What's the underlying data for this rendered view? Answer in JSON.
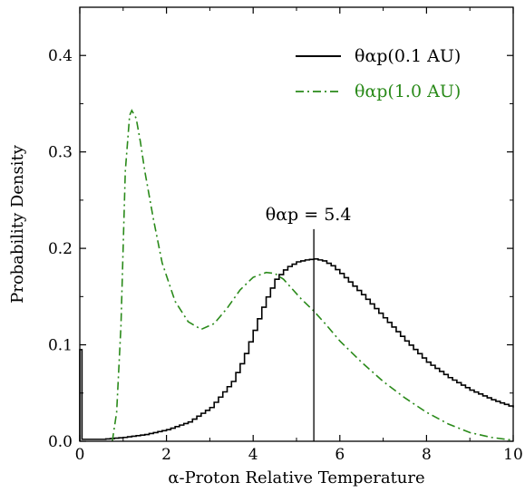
{
  "chart_data": {
    "type": "line",
    "xlabel": "α-Proton Relative Temperature",
    "ylabel": "Probability Density",
    "xlim": [
      0,
      10
    ],
    "ylim": [
      0,
      0.45
    ],
    "x_ticks": [
      0,
      2,
      4,
      6,
      8,
      10
    ],
    "x_tick_labels": [
      "0",
      "2",
      "4",
      "6",
      "8",
      "10"
    ],
    "y_ticks": [
      0.0,
      0.1,
      0.2,
      0.3,
      0.4
    ],
    "y_tick_labels": [
      "0.0",
      "0.1",
      "0.2",
      "0.3",
      "0.4"
    ],
    "grid": false,
    "legend_position": "top-right",
    "series": [
      {
        "name": "θαp(0.1 AU)",
        "color": "#000000",
        "style": "steps-solid",
        "x": [
          0.0,
          0.05,
          0.1,
          0.15,
          0.2,
          0.5,
          1.0,
          1.5,
          2.0,
          2.5,
          3.0,
          3.5,
          3.75,
          4.0,
          4.25,
          4.5,
          4.75,
          5.0,
          5.2,
          5.4,
          5.6,
          5.8,
          6.0,
          6.5,
          7.0,
          7.5,
          8.0,
          8.5,
          9.0,
          9.5,
          10.0
        ],
        "y": [
          0.0,
          0.095,
          0.002,
          0.002,
          0.002,
          0.002,
          0.004,
          0.007,
          0.012,
          0.02,
          0.035,
          0.062,
          0.085,
          0.115,
          0.145,
          0.168,
          0.18,
          0.186,
          0.188,
          0.189,
          0.187,
          0.182,
          0.174,
          0.152,
          0.128,
          0.104,
          0.082,
          0.066,
          0.053,
          0.043,
          0.035
        ]
      },
      {
        "name": "θαp(1.0 AU)",
        "color": "#2a8a1a",
        "style": "dashdot",
        "x": [
          0.75,
          0.85,
          0.95,
          1.05,
          1.15,
          1.2,
          1.3,
          1.4,
          1.5,
          1.7,
          1.9,
          2.2,
          2.5,
          2.8,
          3.1,
          3.4,
          3.7,
          4.0,
          4.3,
          4.5,
          4.7,
          4.9,
          5.1,
          5.4,
          5.7,
          6.0,
          6.5,
          7.0,
          7.5,
          8.0,
          8.5,
          9.0,
          9.5,
          10.0
        ],
        "y": [
          0.0,
          0.03,
          0.12,
          0.28,
          0.338,
          0.343,
          0.335,
          0.31,
          0.28,
          0.23,
          0.185,
          0.145,
          0.124,
          0.116,
          0.122,
          0.138,
          0.157,
          0.17,
          0.175,
          0.174,
          0.168,
          0.158,
          0.148,
          0.135,
          0.12,
          0.104,
          0.082,
          0.062,
          0.045,
          0.03,
          0.018,
          0.009,
          0.004,
          0.001
        ]
      }
    ],
    "annotation": {
      "text": "θαp = 5.4",
      "x": 5.4,
      "y_top": 0.22
    }
  },
  "colors": {
    "axis": "#000000",
    "series_1": "#000000",
    "series_2": "#2a8a1a"
  }
}
